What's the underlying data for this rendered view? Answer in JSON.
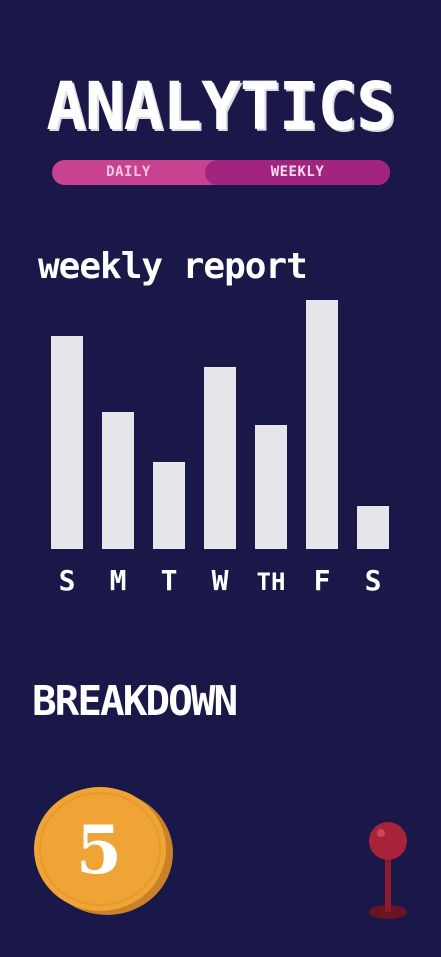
{
  "header": {
    "title": "ANALYTICS"
  },
  "toggle": {
    "daily_label": "DAILY",
    "weekly_label": "WEEKLY",
    "selected": "WEEKLY"
  },
  "report": {
    "title": "weekly report"
  },
  "chart_data": {
    "type": "bar",
    "categories": [
      "S",
      "M",
      "T",
      "W",
      "TH",
      "F",
      "S"
    ],
    "values": [
      213,
      137,
      87,
      182,
      124,
      249,
      43
    ],
    "ylim": [
      0,
      260
    ],
    "bar_color": "#e6e6ea",
    "grid": false
  },
  "breakdown": {
    "title": "BREAKDOWN"
  },
  "coin": {
    "value": "5",
    "color": "#f0a436"
  },
  "icons": {
    "joystick": "joystick-icon",
    "coin": "coin-icon"
  },
  "colors": {
    "background": "#1a1848",
    "toggle_base": "#c8428f",
    "toggle_active": "#a3247f",
    "joystick": "#a8233a"
  }
}
